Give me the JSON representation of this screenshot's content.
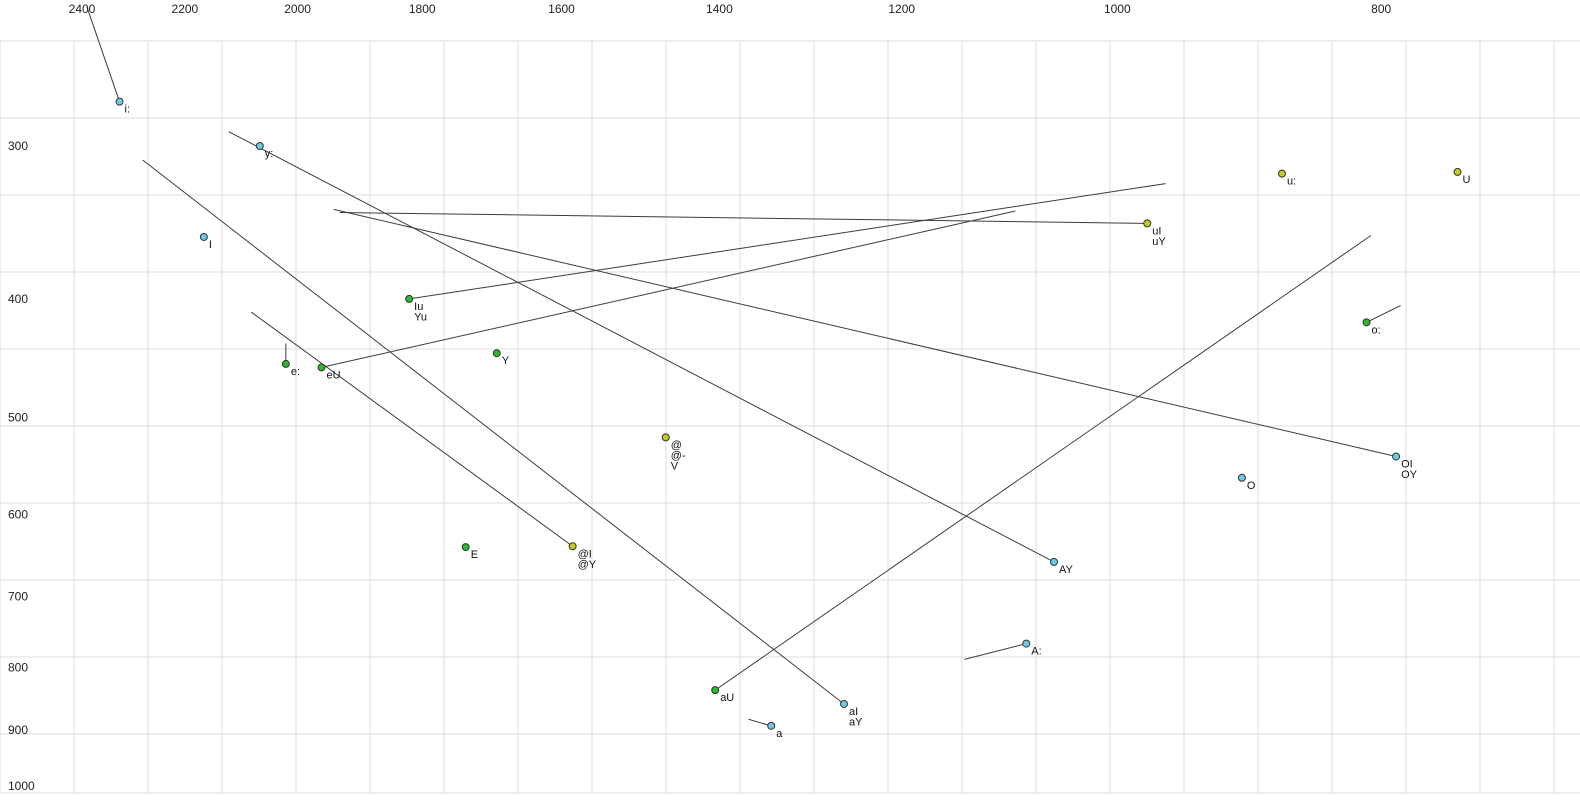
{
  "colors": {
    "background": "#ffffff",
    "grid": "#dddddd",
    "trajectory": "#3c3c3c",
    "point_stroke": "#333333",
    "label_text": "#111111",
    "axis_text": "#222222",
    "palette": {
      "cyan": "#6cc9e8",
      "green": "#2eb82e",
      "yellow": "#c2cc1f"
    }
  },
  "chart_data": {
    "type": "scatter",
    "description": "Vowel formant plot: F2 on reversed log x-axis, F1 on log y-axis, with diphthong trajectory lines",
    "grid": true,
    "legend": "none",
    "x_axis": {
      "ticks": [
        2400,
        2200,
        2000,
        1800,
        1600,
        1400,
        1200,
        1000,
        800
      ],
      "scale": "log",
      "reversed": true
    },
    "y_axis": {
      "ticks": [
        300,
        400,
        500,
        600,
        700,
        800,
        900,
        1000
      ],
      "scale": "log",
      "reversed": false
    },
    "points": [
      {
        "labels": [
          "i:"
        ],
        "f2": 2325,
        "f1": 276,
        "color": "cyan",
        "trajectory_to": {
          "f2": 2390,
          "f1": 231
        }
      },
      {
        "labels": [
          "y:"
        ],
        "f2": 2065,
        "f1": 300,
        "color": "cyan"
      },
      {
        "labels": [
          "u:"
        ],
        "f2": 870,
        "f1": 316,
        "color": "yellow"
      },
      {
        "labels": [
          "U"
        ],
        "f2": 750,
        "f1": 315,
        "color": "yellow"
      },
      {
        "labels": [
          "uI",
          "uY"
        ],
        "f2": 975,
        "f1": 347,
        "color": "yellow",
        "trajectory_to": {
          "f2": 1930,
          "f1": 340
        }
      },
      {
        "labels": [
          "I"
        ],
        "f2": 2165,
        "f1": 356,
        "color": "cyan"
      },
      {
        "labels": [
          "Iu",
          "Yu"
        ],
        "f2": 1820,
        "f1": 400,
        "color": "green",
        "trajectory_to": {
          "f2": 960,
          "f1": 322
        }
      },
      {
        "labels": [
          "o:"
        ],
        "f2": 810,
        "f1": 418,
        "color": "green",
        "trajectory_to": {
          "f2": 787,
          "f1": 405
        }
      },
      {
        "labels": [
          "e:"
        ],
        "f2": 2020,
        "f1": 452,
        "color": "green",
        "trajectory_to": {
          "f2": 2020,
          "f1": 435
        }
      },
      {
        "labels": [
          "eU"
        ],
        "f2": 1960,
        "f1": 455,
        "color": "green",
        "trajectory_to": {
          "f2": 1090,
          "f1": 339
        }
      },
      {
        "labels": [
          "Y"
        ],
        "f2": 1690,
        "f1": 443,
        "color": "green"
      },
      {
        "labels": [
          "@",
          "@-",
          "V"
        ],
        "f2": 1465,
        "f1": 519,
        "color": "yellow"
      },
      {
        "labels": [
          "OI",
          "OY"
        ],
        "f2": 790,
        "f1": 538,
        "color": "cyan",
        "trajectory_to": {
          "f2": 1940,
          "f1": 338
        }
      },
      {
        "labels": [
          "O"
        ],
        "f2": 900,
        "f1": 560,
        "color": "cyan"
      },
      {
        "labels": [
          "E"
        ],
        "f2": 1735,
        "f1": 638,
        "color": "green"
      },
      {
        "labels": [
          "@I",
          "@Y"
        ],
        "f2": 1585,
        "f1": 637,
        "color": "yellow",
        "trajectory_to": {
          "f2": 2080,
          "f1": 410
        }
      },
      {
        "labels": [
          "AY"
        ],
        "f2": 1055,
        "f1": 656,
        "color": "cyan",
        "trajectory_to": {
          "f2": 2120,
          "f1": 292
        }
      },
      {
        "labels": [
          "A:"
        ],
        "f2": 1080,
        "f1": 765,
        "color": "cyan",
        "trajectory_to": {
          "f2": 1138,
          "f1": 788
        }
      },
      {
        "labels": [
          "aU"
        ],
        "f2": 1405,
        "f1": 835,
        "color": "green",
        "trajectory_to": {
          "f2": 807,
          "f1": 355
        }
      },
      {
        "labels": [
          "aI",
          "aY"
        ],
        "f2": 1260,
        "f1": 857,
        "color": "cyan",
        "trajectory_to": {
          "f2": 2280,
          "f1": 308
        }
      },
      {
        "labels": [
          "a"
        ],
        "f2": 1340,
        "f1": 893,
        "color": "cyan",
        "trajectory_to": {
          "f2": 1366,
          "f1": 882
        }
      }
    ]
  }
}
